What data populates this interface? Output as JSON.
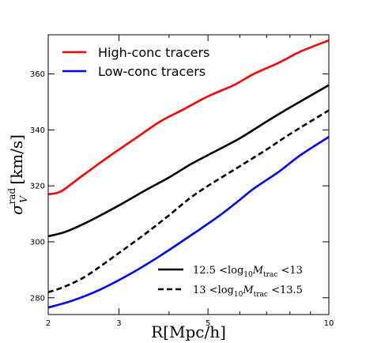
{
  "chart_data": {
    "type": "line",
    "xscale": "log",
    "xlim": [
      2,
      10
    ],
    "ylim": [
      274,
      374
    ],
    "xticks": [
      2,
      3,
      5,
      10
    ],
    "yticks": [
      280,
      300,
      320,
      340,
      360
    ],
    "xlabel": "R[Mpc/h]",
    "ylabel_parts": {
      "main": "σ",
      "sup": "rad",
      "sub": "V",
      "unit": " [km/s]"
    },
    "grid": false,
    "series": [
      {
        "name": "High-conc tracers",
        "color": "#ff0000",
        "dash": "solid",
        "x": [
          2.0,
          2.15,
          2.4,
          2.8,
          3.3,
          3.8,
          4.3,
          5.0,
          5.8,
          6.5,
          7.5,
          8.5,
          10.0
        ],
        "y": [
          317,
          318,
          323,
          330,
          337,
          343,
          347,
          352,
          356,
          360,
          364,
          368,
          372
        ]
      },
      {
        "name": "Low-conc tracers",
        "color": "#0000ff",
        "dash": "solid",
        "x": [
          2.0,
          2.3,
          2.7,
          3.2,
          3.8,
          4.5,
          5.3,
          6.0,
          6.5,
          7.5,
          8.5,
          10.0
        ],
        "y": [
          276.5,
          279,
          283,
          288.5,
          295,
          302,
          309,
          315,
          319,
          325,
          331,
          337.5
        ]
      },
      {
        "name": "12.5 < log10 M_trac < 13",
        "color": "#000000",
        "dash": "solid",
        "x": [
          2.0,
          2.2,
          2.5,
          3.0,
          3.5,
          4.0,
          4.5,
          5.0,
          6.0,
          7.0,
          8.0,
          10.0
        ],
        "y": [
          302,
          303.5,
          307,
          313,
          318.5,
          323,
          327.5,
          331,
          337,
          343,
          348,
          356
        ]
      },
      {
        "name": "13 < log10 M_trac < 13.5",
        "color": "#000000",
        "dash": "dashed",
        "x": [
          2.0,
          2.2,
          2.5,
          3.0,
          3.5,
          4.0,
          4.5,
          5.0,
          6.0,
          7.0,
          8.0,
          10.0
        ],
        "y": [
          282,
          284,
          288,
          296,
          303,
          309.5,
          315.5,
          320,
          327,
          333,
          338.5,
          347
        ]
      }
    ],
    "legend_top": {
      "placement": "top-left",
      "entries": [
        {
          "label": "High-conc tracers",
          "color": "#ff0000"
        },
        {
          "label": "Low-conc tracers",
          "color": "#0000ff"
        }
      ]
    },
    "legend_bottom": {
      "placement": "bottom-right",
      "entries": [
        {
          "pre": "12.5 <log",
          "sub": "10",
          "mid": "M",
          "msub": "trac",
          "post": " <13",
          "dash": "solid"
        },
        {
          "pre": "13 <log",
          "sub": "10",
          "mid": "M",
          "msub": "trac",
          "post": " <13.5",
          "dash": "dashed"
        }
      ]
    }
  }
}
